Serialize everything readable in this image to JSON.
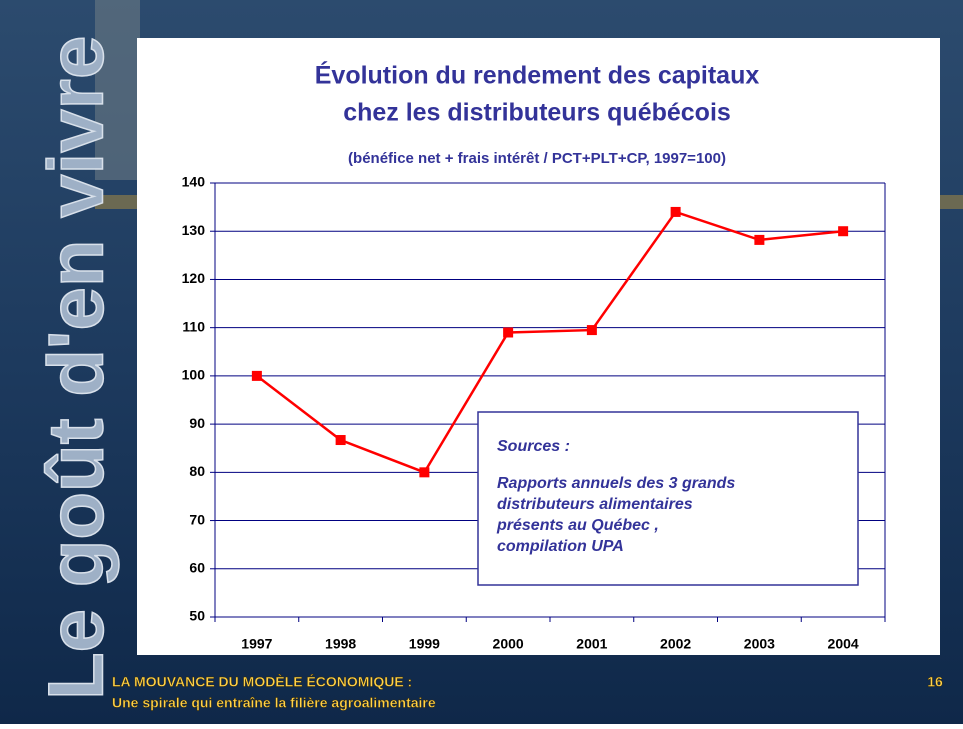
{
  "chart_data": {
    "type": "line",
    "title": [
      "Évolution du rendement des capitaux",
      "chez les distributeurs québécois"
    ],
    "subtitle": "(bénéfice net + frais intérêt / PCT+PLT+CP, 1997=100)",
    "categories": [
      "1997",
      "1998",
      "1999",
      "2000",
      "2001",
      "2002",
      "2003",
      "2004"
    ],
    "series": [
      {
        "color": "#ff0000",
        "values": [
          100,
          86.7,
          80,
          109,
          109.5,
          134,
          128.2,
          130
        ]
      }
    ],
    "ylim": [
      50,
      140
    ],
    "yticks": [
      50,
      60,
      70,
      80,
      90,
      100,
      110,
      120,
      130,
      140
    ],
    "grid": true,
    "annotation": {
      "heading": "Sources :",
      "lines": [
        "Rapports annuels des 3 grands",
        "distributeurs alimentaires",
        "présents au Québec ,",
        "compilation UPA"
      ]
    }
  },
  "slide": {
    "side_text": "Le goût d'en vivre",
    "footer": [
      "LA MOUVANCE DU MODÈLE ÉCONOMIQUE :",
      "Une spirale qui entraîne la filière agroalimentaire"
    ],
    "page_number": "16"
  }
}
